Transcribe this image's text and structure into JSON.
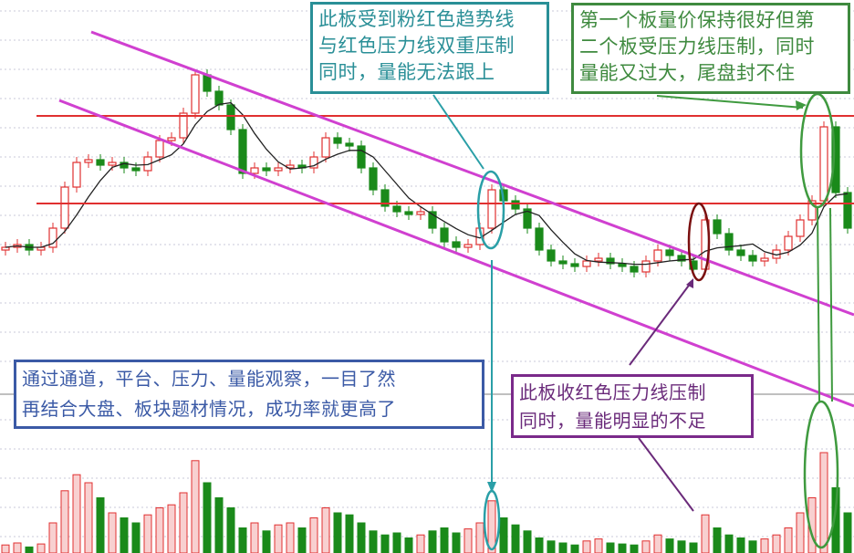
{
  "chart_data": {
    "type": "candlestick",
    "title": "",
    "xlabel": "",
    "ylabel": "",
    "grid": true,
    "colors": {
      "up": "#e03030",
      "down": "#1a8a1a",
      "ma": "#222222",
      "trendline": "#d040d0",
      "resistance": "#e03030"
    },
    "closes": [
      23,
      24,
      22,
      23,
      30,
      45,
      54,
      55,
      53,
      54,
      52,
      51,
      56,
      62,
      63,
      72,
      86,
      80,
      75,
      66,
      50,
      52,
      51,
      52,
      53,
      52,
      56,
      63,
      61,
      60,
      52,
      44,
      38,
      36,
      35,
      36,
      30,
      25,
      23,
      24,
      30,
      44,
      40,
      37,
      30,
      22,
      18,
      17,
      16,
      18,
      19,
      17,
      16,
      14,
      18,
      22,
      20,
      18,
      15,
      33,
      28,
      22,
      20,
      18,
      19,
      22,
      27,
      33,
      40,
      67,
      43,
      30
    ],
    "volumes": [
      8,
      10,
      6,
      9,
      30,
      62,
      78,
      70,
      55,
      40,
      35,
      30,
      38,
      45,
      48,
      60,
      92,
      70,
      55,
      45,
      25,
      30,
      22,
      28,
      30,
      25,
      35,
      45,
      40,
      38,
      30,
      22,
      18,
      20,
      15,
      18,
      22,
      25,
      20,
      24,
      30,
      52,
      35,
      28,
      22,
      15,
      12,
      10,
      8,
      12,
      14,
      10,
      9,
      8,
      12,
      18,
      14,
      12,
      10,
      38,
      25,
      18,
      15,
      12,
      14,
      18,
      25,
      40,
      55,
      100,
      65,
      40
    ],
    "resistance_levels": [
      71,
      39
    ]
  },
  "annotations": {
    "box_teal": [
      "此板受到粉红色趋势线",
      "与红色压力线双重压制",
      "同时，量能无法跟上"
    ],
    "box_green": [
      "第一个板量价保持很好但第",
      "二个板受压力线压制，同时",
      "量能又过大，尾盘封不住"
    ],
    "box_blue": [
      "通过通道，平台、压力、量能观察，一目了然",
      "再结合大盘、板块题材情况，成功率就更高了"
    ],
    "box_purple": [
      "此板收红色压力线压制",
      "同时，量能明显的不足"
    ]
  }
}
